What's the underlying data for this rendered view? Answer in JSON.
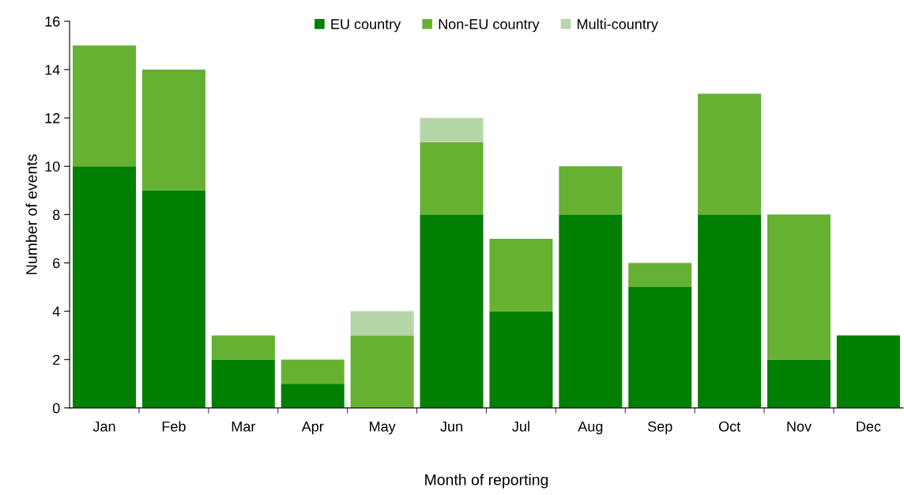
{
  "chart_data": {
    "type": "bar",
    "stacked": true,
    "xlabel": "Month of reporting",
    "ylabel": "Number of events",
    "categories": [
      "Jan",
      "Feb",
      "Mar",
      "Apr",
      "May",
      "Jun",
      "Jul",
      "Aug",
      "Sep",
      "Oct",
      "Nov",
      "Dec"
    ],
    "series": [
      {
        "name": "EU country",
        "color": "#007f00",
        "values": [
          10,
          9,
          2,
          1,
          0,
          8,
          4,
          8,
          5,
          8,
          2,
          3
        ]
      },
      {
        "name": "Non-EU country",
        "color": "#66b132",
        "values": [
          5,
          5,
          1,
          1,
          3,
          3,
          3,
          2,
          1,
          5,
          6,
          0
        ]
      },
      {
        "name": "Multi-country",
        "color": "#b5d6a7",
        "values": [
          0,
          0,
          0,
          0,
          1,
          1,
          0,
          0,
          0,
          0,
          0,
          0
        ]
      }
    ],
    "ylim": [
      0,
      16
    ],
    "yticks": [
      0,
      2,
      4,
      6,
      8,
      10,
      12,
      14,
      16
    ],
    "grid": false,
    "legend": "top"
  }
}
